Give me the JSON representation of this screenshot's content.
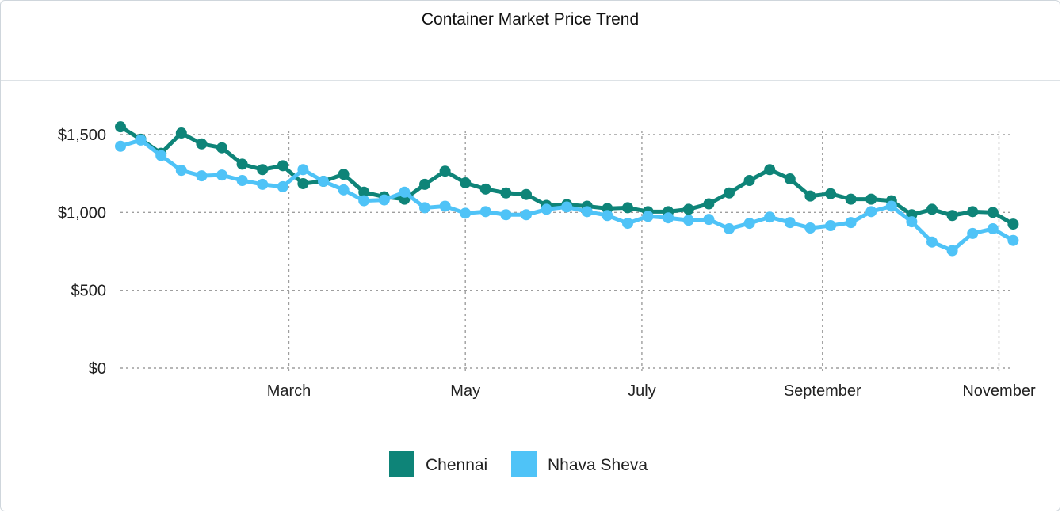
{
  "title": "Container Market Price Trend",
  "chart_data": {
    "type": "line",
    "title": "Container Market Price Trend",
    "xlabel": "",
    "ylabel": "",
    "ylim": [
      0,
      1500
    ],
    "y_ticks": [
      0,
      500,
      1000,
      1500
    ],
    "y_tick_labels": [
      "$0",
      "$500",
      "$1,000",
      "$1,500"
    ],
    "x_tick_labels": [
      "March",
      "May",
      "July",
      "September",
      "November"
    ],
    "x_tick_weeks": [
      8.3,
      17,
      25.7,
      34.6,
      43.3
    ],
    "grid": true,
    "legend_position": "bottom",
    "weeks": [
      0,
      1,
      2,
      3,
      4,
      5,
      6,
      7,
      8,
      9,
      10,
      11,
      12,
      13,
      14,
      15,
      16,
      17,
      18,
      19,
      20,
      21,
      22,
      23,
      24,
      25,
      26,
      27,
      28,
      29,
      30,
      31,
      32,
      33,
      34,
      35,
      36,
      37,
      38,
      39,
      40,
      41,
      42,
      43,
      44
    ],
    "series": [
      {
        "name": "Chennai",
        "color": "#0e8478",
        "values": [
          1550,
          1470,
          1380,
          1510,
          1440,
          1415,
          1310,
          1275,
          1300,
          1185,
          1200,
          1245,
          1130,
          1100,
          1085,
          1180,
          1265,
          1190,
          1150,
          1125,
          1115,
          1045,
          1050,
          1040,
          1025,
          1030,
          1005,
          1005,
          1020,
          1055,
          1125,
          1205,
          1275,
          1215,
          1105,
          1120,
          1085,
          1085,
          1075,
          985,
          1020,
          980,
          1005,
          1000,
          925
        ]
      },
      {
        "name": "Nhava Sheva",
        "color": "#4fc3f7",
        "values": [
          1425,
          1465,
          1365,
          1270,
          1235,
          1240,
          1205,
          1180,
          1165,
          1275,
          1200,
          1145,
          1075,
          1080,
          1130,
          1030,
          1040,
          995,
          1005,
          985,
          985,
          1020,
          1035,
          1005,
          980,
          930,
          975,
          965,
          950,
          955,
          895,
          930,
          970,
          935,
          900,
          915,
          935,
          1005,
          1040,
          940,
          810,
          755,
          865,
          895,
          820
        ]
      }
    ]
  }
}
